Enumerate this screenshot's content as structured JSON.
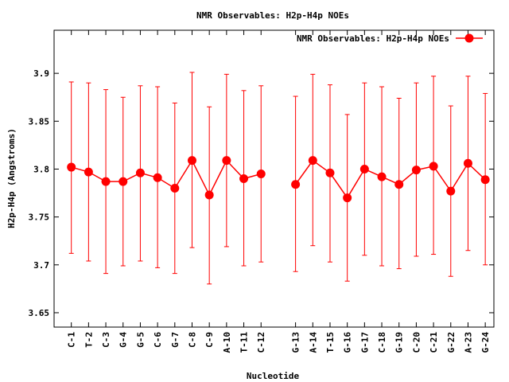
{
  "chart_data": {
    "type": "line",
    "title": "NMR Observables: H2p-H4p NOEs",
    "xlabel": "Nucleotide",
    "ylabel": "H2p-H4p (Angstroms)",
    "ylim": [
      3.635,
      3.945
    ],
    "yticks": [
      3.65,
      3.7,
      3.75,
      3.8,
      3.85,
      3.9
    ],
    "ytick_labels": [
      "3.65",
      "3.7",
      "3.75",
      "3.8",
      "3.85",
      "3.9"
    ],
    "legend": "top-right",
    "grid": false,
    "color": "#ff0000",
    "series": [
      {
        "name": "NMR Observables: H2p-H4p NOEs",
        "segments": [
          {
            "categories": [
              "C-1",
              "T-2",
              "C-3",
              "G-4",
              "G-5",
              "C-6",
              "G-7",
              "C-8",
              "C-9",
              "A-10",
              "T-11",
              "C-12"
            ],
            "x": [
              1,
              2,
              3,
              4,
              5,
              6,
              7,
              8,
              9,
              10,
              11,
              12
            ],
            "values": [
              3.802,
              3.797,
              3.787,
              3.787,
              3.796,
              3.791,
              3.78,
              3.809,
              3.773,
              3.809,
              3.79,
              3.795
            ],
            "err_low": [
              3.712,
              3.704,
              3.691,
              3.699,
              3.704,
              3.697,
              3.691,
              3.718,
              3.68,
              3.719,
              3.699,
              3.703
            ],
            "err_high": [
              3.891,
              3.89,
              3.883,
              3.875,
              3.887,
              3.886,
              3.869,
              3.901,
              3.865,
              3.899,
              3.882,
              3.887
            ]
          },
          {
            "categories": [
              "G-13",
              "A-14",
              "T-15",
              "G-16",
              "G-17",
              "C-18",
              "G-19",
              "C-20",
              "C-21",
              "G-22",
              "A-23",
              "G-24"
            ],
            "x": [
              14,
              15,
              16,
              17,
              18,
              19,
              20,
              21,
              22,
              23,
              24,
              25
            ],
            "values": [
              3.784,
              3.809,
              3.796,
              3.77,
              3.8,
              3.792,
              3.784,
              3.799,
              3.803,
              3.777,
              3.806,
              3.789
            ],
            "err_low": [
              3.693,
              3.72,
              3.703,
              3.683,
              3.71,
              3.699,
              3.696,
              3.709,
              3.711,
              3.688,
              3.715,
              3.7
            ],
            "err_high": [
              3.876,
              3.899,
              3.888,
              3.857,
              3.89,
              3.886,
              3.874,
              3.89,
              3.897,
              3.866,
              3.897,
              3.879
            ]
          }
        ]
      }
    ]
  }
}
